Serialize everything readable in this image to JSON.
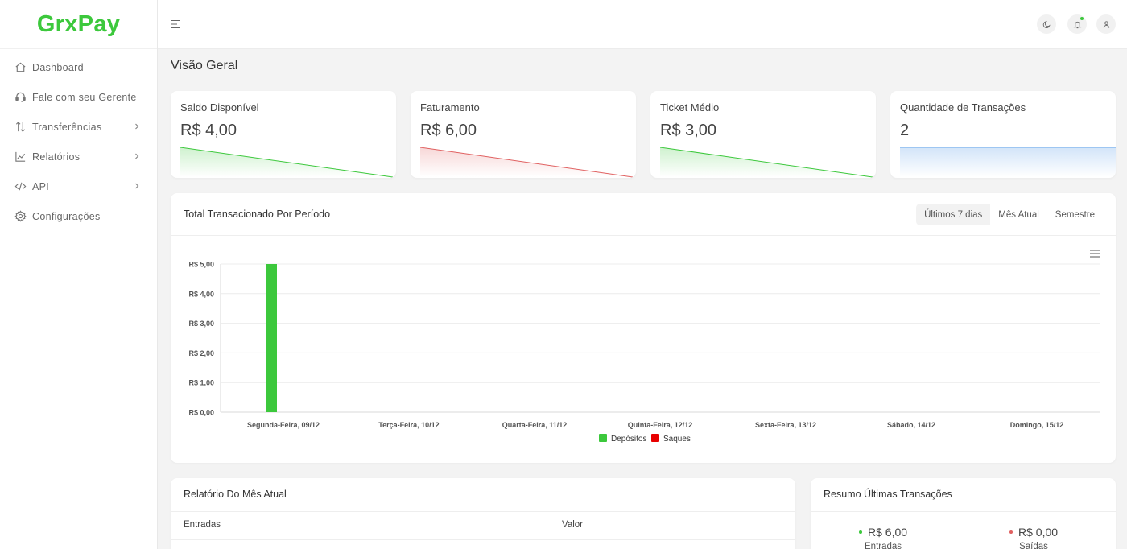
{
  "brand": {
    "name": "GrxPay",
    "color": "#3cc83c"
  },
  "sidebar": {
    "items": [
      {
        "label": "Dashboard",
        "icon": "home-icon",
        "has_submenu": false
      },
      {
        "label": "Fale com seu Gerente",
        "icon": "headset-icon",
        "has_submenu": false
      },
      {
        "label": "Transferências",
        "icon": "arrows-up-down-icon",
        "has_submenu": true
      },
      {
        "label": "Relatórios",
        "icon": "line-chart-icon",
        "has_submenu": true
      },
      {
        "label": "API",
        "icon": "code-icon",
        "has_submenu": true
      },
      {
        "label": "Configurações",
        "icon": "gear-icon",
        "has_submenu": false
      }
    ]
  },
  "topbar": {
    "icons": [
      "menu-icon",
      "moon-icon",
      "bell-icon",
      "user-icon"
    ]
  },
  "page": {
    "title": "Visão Geral"
  },
  "stats": [
    {
      "label": "Saldo Disponível",
      "value": "R$ 4,00",
      "color": "#3cc83c",
      "trend": "down"
    },
    {
      "label": "Faturamento",
      "value": "R$ 6,00",
      "color": "#e06060",
      "trend": "down"
    },
    {
      "label": "Ticket Médio",
      "value": "R$ 3,00",
      "color": "#3cc83c",
      "trend": "down"
    },
    {
      "label": "Quantidade de Transações",
      "value": "2",
      "color": "#6aa6ea",
      "trend": "flat"
    }
  ],
  "period_chart": {
    "title": "Total Transacionado Por Período",
    "filters": [
      "Últimos 7 dias",
      "Mês Atual",
      "Semestre"
    ],
    "active_filter": "Últimos 7 dias"
  },
  "chart_data": {
    "type": "bar",
    "categories": [
      "Segunda-Feira, 09/12",
      "Terça-Feira, 10/12",
      "Quarta-Feira, 11/12",
      "Quinta-Feira, 12/12",
      "Sexta-Feira, 13/12",
      "Sábado, 14/12",
      "Domingo, 15/12"
    ],
    "series": [
      {
        "name": "Depósitos",
        "color": "#3cc83c",
        "values": [
          5,
          0,
          0,
          0,
          0,
          0,
          0
        ]
      },
      {
        "name": "Saques",
        "color": "#e80000",
        "values": [
          0,
          0,
          0,
          0,
          0,
          0,
          0
        ]
      }
    ],
    "yticks": [
      "R$ 0,00",
      "R$ 1,00",
      "R$ 2,00",
      "R$ 3,00",
      "R$ 4,00",
      "R$ 5,00"
    ],
    "ylim": [
      0,
      5
    ],
    "grid": true,
    "legend": "bottom-center"
  },
  "monthly_report": {
    "title": "Relatório Do Mês Atual",
    "columns": [
      "Entradas",
      "Valor"
    ]
  },
  "summary": {
    "title": "Resumo Últimas Transações",
    "items": [
      {
        "value": "R$ 6,00",
        "label": "Entradas",
        "color": "#3cc83c"
      },
      {
        "value": "R$ 0,00",
        "label": "Saídas",
        "color": "#e06060"
      }
    ]
  }
}
